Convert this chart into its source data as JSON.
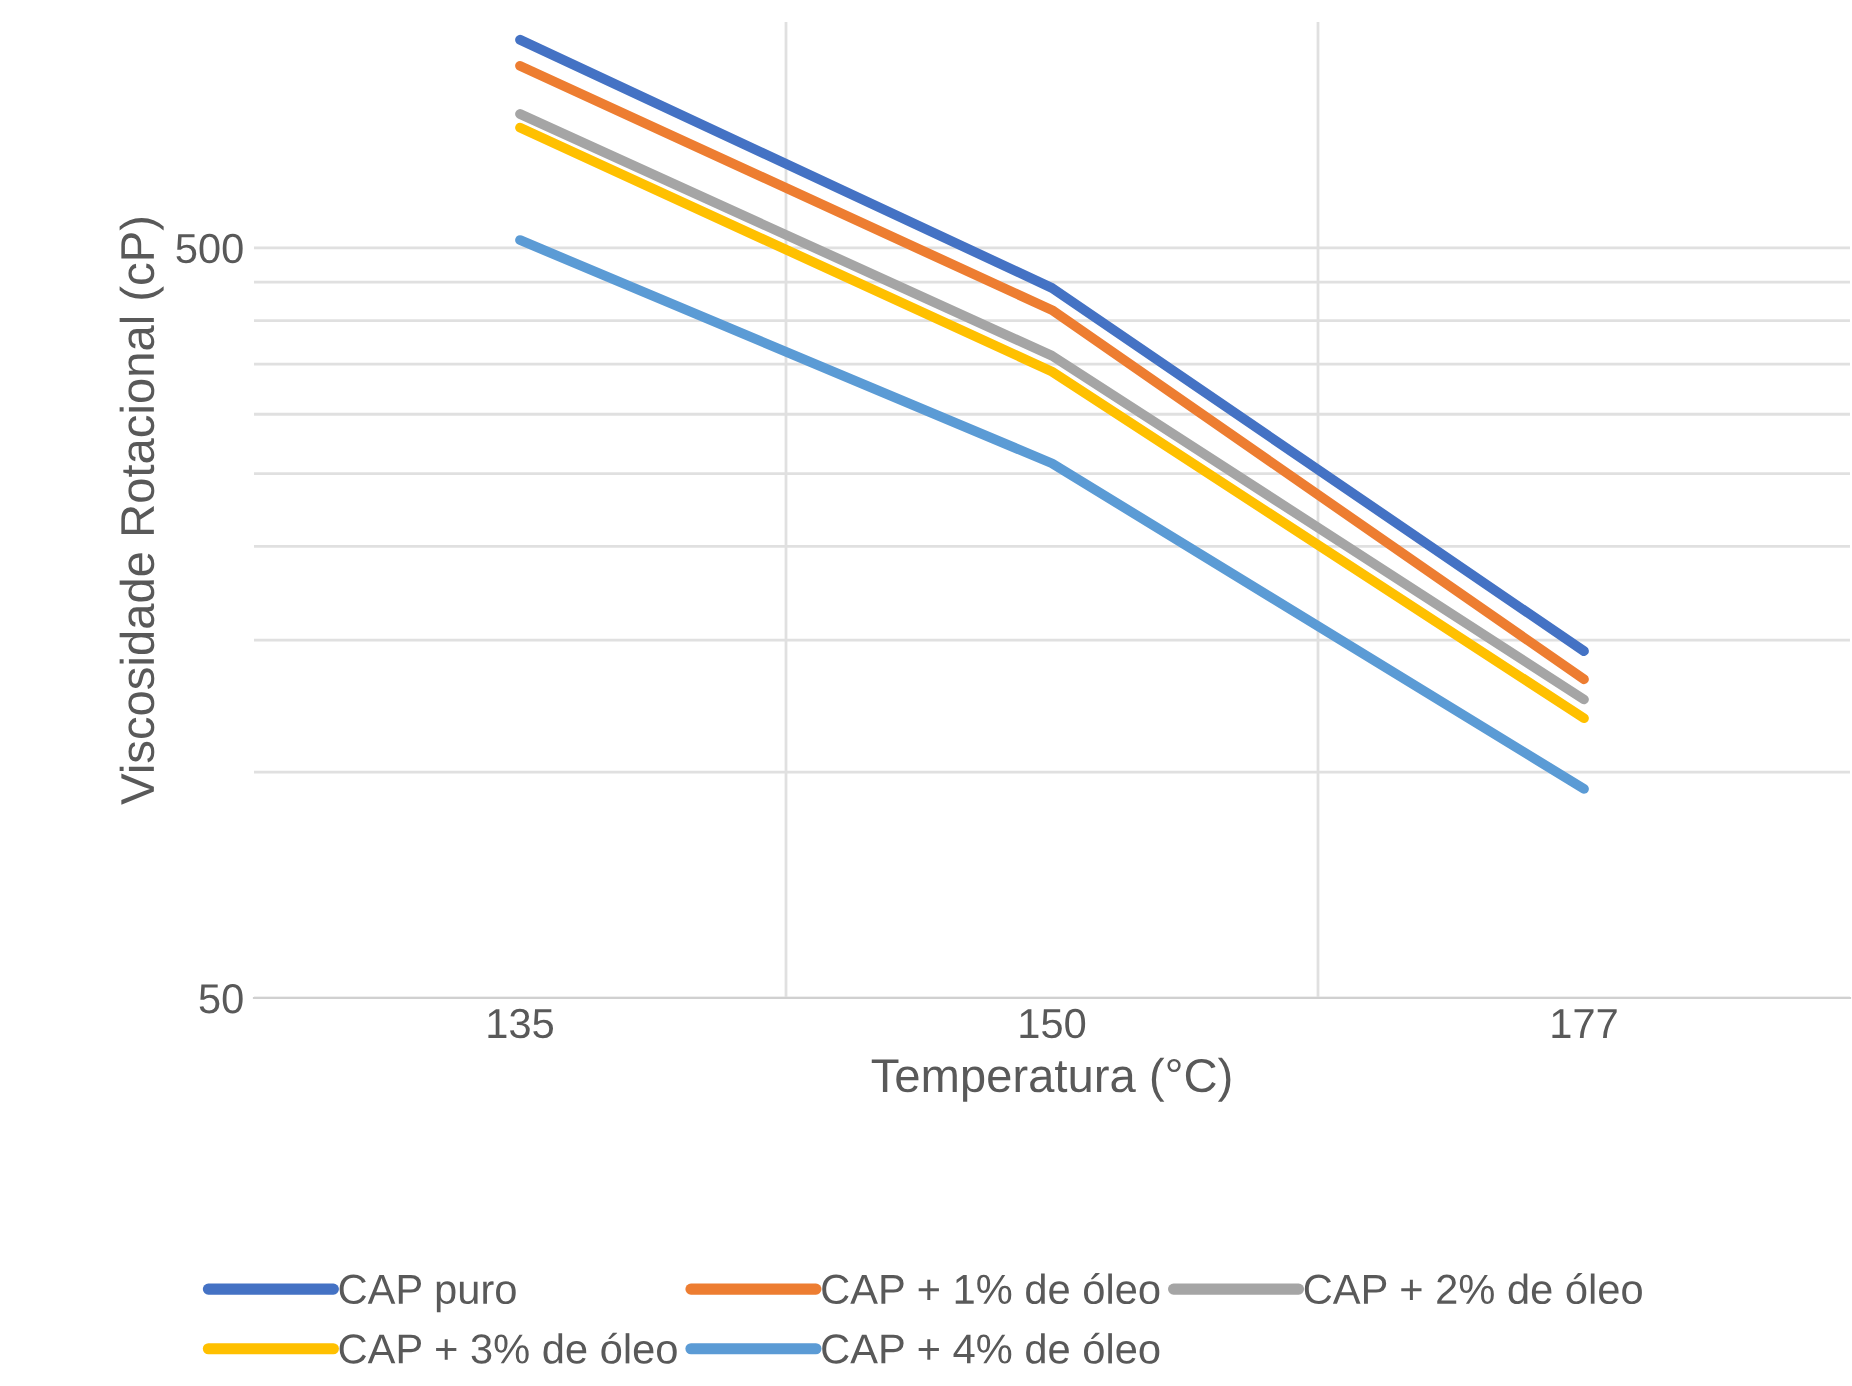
{
  "chart_data": {
    "type": "line",
    "xlabel": "Temperatura (°C)",
    "ylabel": "Viscosidade Rotacional (cP)",
    "categories": [
      "135",
      "150",
      "177"
    ],
    "log": true,
    "ylim": [
      50,
      1000
    ],
    "yticks": [
      50,
      {
        "value": 100,
        "label": null
      },
      {
        "value": 150,
        "label": null
      },
      {
        "value": 200,
        "label": null
      },
      {
        "value": 250,
        "label": null
      },
      {
        "value": 300,
        "label": null
      },
      {
        "value": 350,
        "label": null
      },
      {
        "value": 400,
        "label": null
      },
      {
        "value": 450,
        "label": null
      },
      500
    ],
    "grid": true,
    "legend": "bottom",
    "marker": "none",
    "line_style": "solid",
    "series": [
      {
        "name": "CAP puro",
        "color": "#4472c4",
        "values": [
          947,
          442,
          145
        ]
      },
      {
        "name": "CAP + 1% de óleo",
        "color": "#ed7d31",
        "values": [
          874,
          413,
          133
        ]
      },
      {
        "name": "CAP + 2% de óleo",
        "color": "#a5a5a5",
        "values": [
          754,
          359,
          125
        ]
      },
      {
        "name": "CAP + 3% de óleo",
        "color": "#ffc000",
        "values": [
          723,
          342,
          118
        ]
      },
      {
        "name": "CAP + 4% de óleo",
        "color": "#5b9bd5",
        "values": [
          512,
          258,
          95
        ]
      }
    ]
  }
}
